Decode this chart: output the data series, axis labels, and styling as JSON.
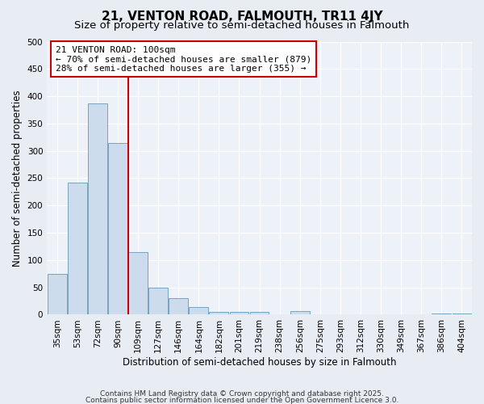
{
  "title_line1": "21, VENTON ROAD, FALMOUTH, TR11 4JY",
  "title_line2": "Size of property relative to semi-detached houses in Falmouth",
  "xlabel": "Distribution of semi-detached houses by size in Falmouth",
  "ylabel": "Number of semi-detached properties",
  "categories": [
    "35sqm",
    "53sqm",
    "72sqm",
    "90sqm",
    "109sqm",
    "127sqm",
    "146sqm",
    "164sqm",
    "182sqm",
    "201sqm",
    "219sqm",
    "238sqm",
    "256sqm",
    "275sqm",
    "293sqm",
    "312sqm",
    "330sqm",
    "349sqm",
    "367sqm",
    "386sqm",
    "404sqm"
  ],
  "values": [
    75,
    242,
    387,
    315,
    114,
    49,
    30,
    14,
    5,
    5,
    5,
    0,
    7,
    0,
    0,
    0,
    0,
    0,
    0,
    2,
    2
  ],
  "bar_color": "#ccdcec",
  "bar_edge_color": "#6699bb",
  "red_line_x": 3.5,
  "ylim": [
    0,
    500
  ],
  "yticks": [
    0,
    50,
    100,
    150,
    200,
    250,
    300,
    350,
    400,
    450,
    500
  ],
  "annotation_title": "21 VENTON ROAD: 100sqm",
  "annotation_line1": "← 70% of semi-detached houses are smaller (879)",
  "annotation_line2": "28% of semi-detached houses are larger (355) →",
  "annotation_box_facecolor": "#ffffff",
  "annotation_box_edgecolor": "#cc0000",
  "background_color": "#e8edf4",
  "plot_bg_color": "#edf1f8",
  "grid_color": "#ffffff",
  "title_fontsize": 11,
  "subtitle_fontsize": 9.5,
  "label_fontsize": 8.5,
  "tick_fontsize": 7.5,
  "annotation_fontsize": 8,
  "footer_line1": "Contains HM Land Registry data © Crown copyright and database right 2025.",
  "footer_line2": "Contains public sector information licensed under the Open Government Licence 3.0."
}
